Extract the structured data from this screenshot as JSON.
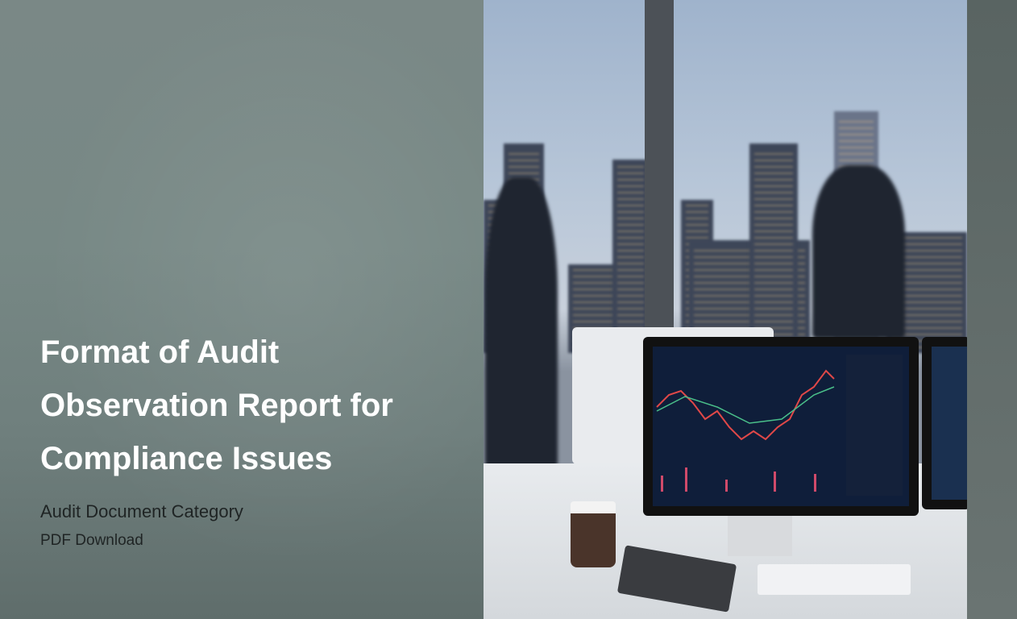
{
  "title": "Format of Audit Observation Report for Compliance Issues",
  "category": "Audit Document Category",
  "format_label": "PDF Download",
  "colors": {
    "left_panel": "#778885",
    "title_text": "#ffffff",
    "subtitle_text": "#1f2424"
  }
}
